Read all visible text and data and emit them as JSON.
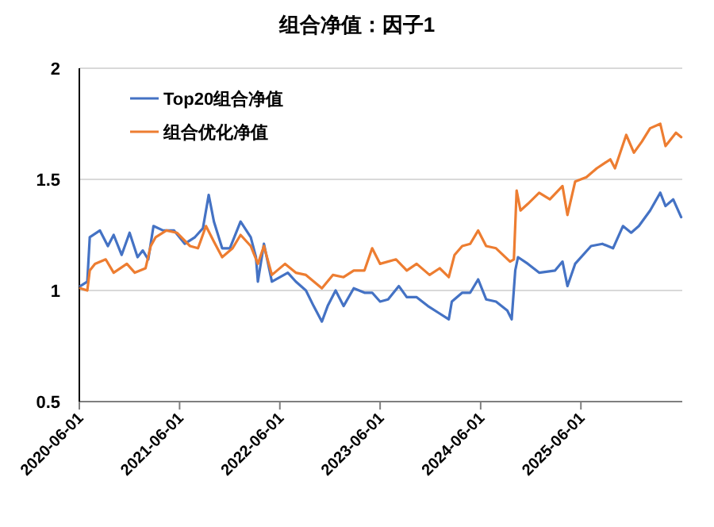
{
  "chart_data": {
    "type": "line",
    "title": "组合净值：因子1",
    "xlim": [
      "2020-06-01",
      "2026-06-05"
    ],
    "ylim": [
      0.5,
      2
    ],
    "xticks": [
      "2020-06-01",
      "2021-06-01",
      "2022-06-01",
      "2023-06-01",
      "2024-06-01",
      "2025-06-01"
    ],
    "yticks": [
      0.5,
      1,
      1.5,
      2
    ],
    "grid": "y",
    "legend": "top left",
    "marker": "none",
    "line_style": "solid",
    "series": [
      {
        "name": "Top20组合净值",
        "color": "#4472c4",
        "x": [
          "2020-06-05",
          "2020-06-30",
          "2020-07-09",
          "2020-08-15",
          "2020-09-13",
          "2020-10-04",
          "2020-11-02",
          "2020-12-01",
          "2020-12-30",
          "2021-01-18",
          "2021-02-07",
          "2021-02-26",
          "2021-04-02",
          "2021-05-12",
          "2021-06-20",
          "2021-07-27",
          "2021-08-25",
          "2021-09-15",
          "2021-10-04",
          "2021-11-03",
          "2021-12-01",
          "2022-01-09",
          "2022-02-15",
          "2022-03-06",
          "2022-03-13",
          "2022-04-04",
          "2022-05-03",
          "2022-06-30",
          "2022-07-29",
          "2022-09-04",
          "2022-10-02",
          "2022-11-01",
          "2022-11-22",
          "2022-12-21",
          "2023-01-19",
          "2023-02-25",
          "2023-04-05",
          "2023-05-03",
          "2023-06-01",
          "2023-06-30",
          "2023-08-08",
          "2023-09-06",
          "2023-10-12",
          "2023-11-22",
          "2023-12-30",
          "2024-02-06",
          "2024-02-17",
          "2024-03-26",
          "2024-04-24",
          "2024-05-23",
          "2024-06-21",
          "2024-07-27",
          "2024-09-06",
          "2024-09-22",
          "2024-10-05",
          "2024-10-15",
          "2024-11-20",
          "2024-12-31",
          "2025-02-27",
          "2025-03-26",
          "2025-04-13",
          "2025-05-11",
          "2025-07-08",
          "2025-08-18",
          "2025-09-26",
          "2025-11-01",
          "2025-12-01",
          "2025-12-29",
          "2026-02-08",
          "2026-03-17",
          "2026-04-05",
          "2026-05-03",
          "2026-06-01"
        ],
        "values": [
          1.02,
          1.04,
          1.24,
          1.27,
          1.2,
          1.25,
          1.16,
          1.26,
          1.15,
          1.18,
          1.14,
          1.29,
          1.27,
          1.27,
          1.21,
          1.24,
          1.28,
          1.43,
          1.31,
          1.19,
          1.19,
          1.31,
          1.24,
          1.15,
          1.04,
          1.21,
          1.04,
          1.08,
          1.04,
          1.0,
          0.93,
          0.86,
          0.93,
          1.0,
          0.93,
          1.01,
          0.99,
          0.99,
          0.95,
          0.96,
          1.02,
          0.97,
          0.97,
          0.93,
          0.9,
          0.87,
          0.95,
          0.99,
          0.99,
          1.05,
          0.96,
          0.95,
          0.91,
          0.87,
          1.09,
          1.15,
          1.12,
          1.08,
          1.09,
          1.13,
          1.02,
          1.12,
          1.2,
          1.21,
          1.19,
          1.29,
          1.26,
          1.29,
          1.36,
          1.44,
          1.38,
          1.41,
          1.33
        ]
      },
      {
        "name": "组合优化净值",
        "color": "#ed7d31",
        "x": [
          "2020-06-05",
          "2020-06-30",
          "2020-07-09",
          "2020-07-28",
          "2020-09-05",
          "2020-10-04",
          "2020-11-21",
          "2020-12-20",
          "2021-01-28",
          "2021-02-16",
          "2021-03-06",
          "2021-04-14",
          "2021-05-22",
          "2021-07-09",
          "2021-08-07",
          "2021-09-05",
          "2021-10-04",
          "2021-11-03",
          "2021-12-11",
          "2022-01-09",
          "2022-02-15",
          "2022-03-13",
          "2022-04-04",
          "2022-05-03",
          "2022-06-20",
          "2022-07-29",
          "2022-09-04",
          "2022-11-01",
          "2022-12-11",
          "2023-01-19",
          "2023-02-25",
          "2023-04-05",
          "2023-05-03",
          "2023-06-01",
          "2023-07-29",
          "2023-09-06",
          "2023-10-12",
          "2023-11-28",
          "2024-01-04",
          "2024-02-06",
          "2024-02-27",
          "2024-03-26",
          "2024-04-24",
          "2024-05-23",
          "2024-06-21",
          "2024-07-27",
          "2024-09-16",
          "2024-09-30",
          "2024-10-10",
          "2024-10-24",
          "2024-11-20",
          "2024-12-31",
          "2025-02-08",
          "2025-03-26",
          "2025-04-13",
          "2025-05-11",
          "2025-06-21",
          "2025-07-29",
          "2025-09-16",
          "2025-10-03",
          "2025-11-13",
          "2025-12-11",
          "2026-01-09",
          "2026-02-08",
          "2026-03-17",
          "2026-04-05",
          "2026-05-13",
          "2026-06-01"
        ],
        "values": [
          1.01,
          1.0,
          1.09,
          1.12,
          1.14,
          1.08,
          1.12,
          1.08,
          1.1,
          1.2,
          1.24,
          1.27,
          1.26,
          1.2,
          1.19,
          1.29,
          1.22,
          1.15,
          1.19,
          1.25,
          1.2,
          1.12,
          1.2,
          1.07,
          1.12,
          1.08,
          1.07,
          1.01,
          1.07,
          1.06,
          1.09,
          1.09,
          1.19,
          1.12,
          1.14,
          1.09,
          1.12,
          1.07,
          1.1,
          1.06,
          1.16,
          1.2,
          1.21,
          1.27,
          1.2,
          1.19,
          1.13,
          1.14,
          1.45,
          1.36,
          1.39,
          1.44,
          1.41,
          1.47,
          1.34,
          1.49,
          1.51,
          1.55,
          1.59,
          1.55,
          1.7,
          1.62,
          1.67,
          1.73,
          1.75,
          1.65,
          1.71,
          1.69
        ]
      }
    ]
  }
}
